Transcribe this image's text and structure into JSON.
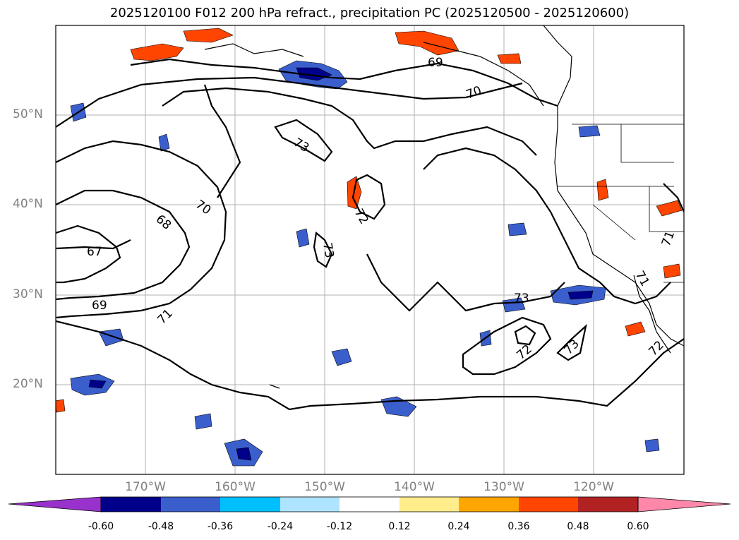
{
  "title": "2025120100 F012 200 hPa refract., precipitation PC (2025120500 - 2025120600)",
  "lat_ticks": [
    "50°N",
    "40°N",
    "30°N",
    "20°N"
  ],
  "lon_ticks": [
    "170°W",
    "160°W",
    "150°W",
    "140°W",
    "130°W",
    "120°W"
  ],
  "contour_labels": [
    "69",
    "70",
    "73",
    "70",
    "68",
    "67",
    "69",
    "71",
    "72",
    "73",
    "73",
    "72",
    "73",
    "72",
    "71",
    "71"
  ],
  "colorbar": {
    "labels": [
      "-0.60",
      "-0.48",
      "-0.36",
      "-0.24",
      "-0.12",
      "0.12",
      "0.24",
      "0.36",
      "0.48",
      "0.60"
    ],
    "colors": [
      "#9932cc",
      "#00008b",
      "#3a5fcd",
      "#00bfff",
      "#aee4ff",
      "#ffffff",
      "#ffec8b",
      "#ffa500",
      "#ff4500",
      "#b22222",
      "#ff88aa"
    ]
  }
}
